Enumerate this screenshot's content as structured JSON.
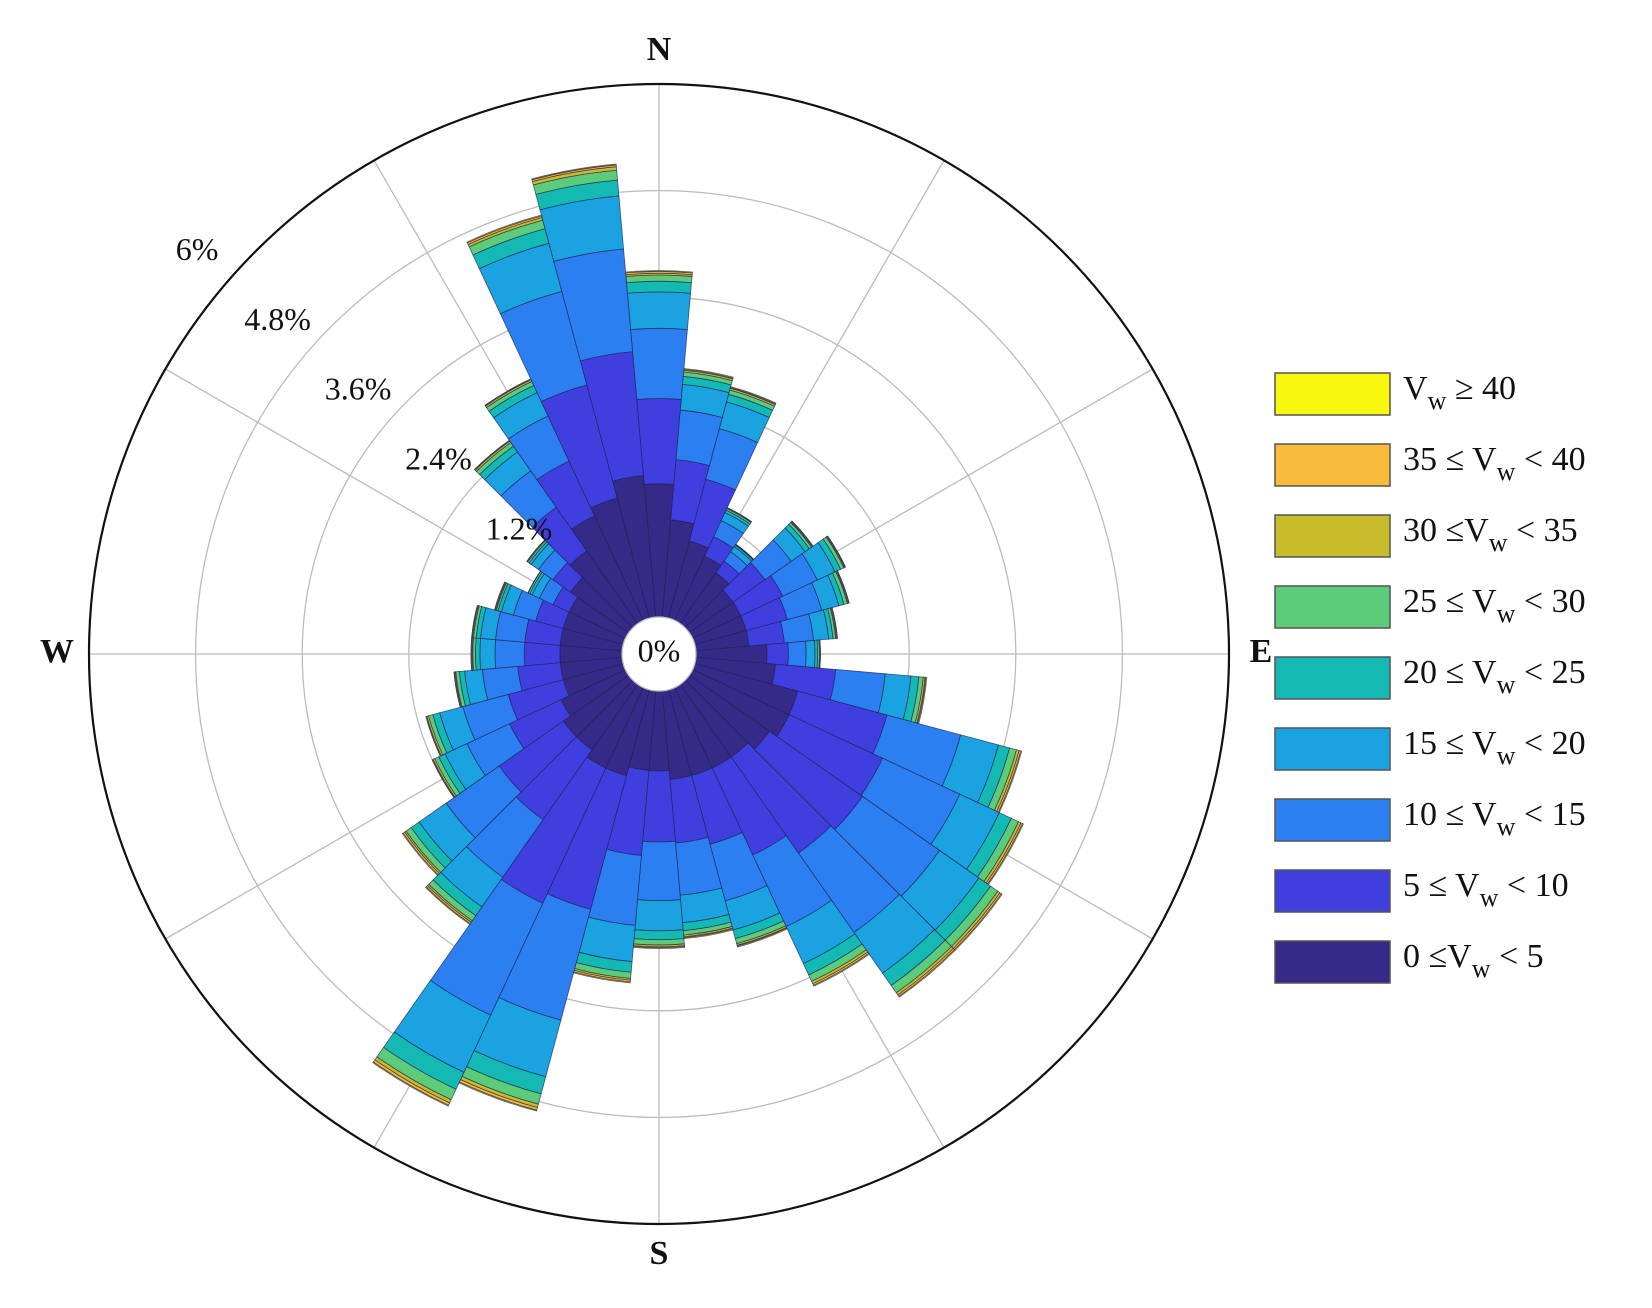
{
  "chart_data": {
    "type": "windrose",
    "categories": [
      null,
      null,
      null,
      null,
      null,
      null,
      null,
      null,
      null,
      null,
      null,
      null,
      null,
      null,
      null,
      null,
      null,
      null,
      null,
      null,
      null,
      null,
      null,
      null,
      null,
      null,
      null,
      null,
      null,
      null,
      null,
      null,
      null,
      null,
      null,
      null
    ],
    "direction_labels": [
      "N",
      "E",
      "S",
      "W"
    ],
    "ylim": [
      0,
      6
    ],
    "yticks": [
      {
        "value": 0,
        "label": "0%"
      },
      {
        "value": 1.2,
        "label": "1.2%"
      },
      {
        "value": 2.4,
        "label": "2.4%"
      },
      {
        "value": 3.6,
        "label": "3.6%"
      },
      {
        "value": 4.8,
        "label": "4.8%"
      },
      {
        "value": 6,
        "label": "6%"
      }
    ],
    "grid": true,
    "legend": "right",
    "series": [
      {
        "name": "0 ≤Vw < 5",
        "color": "#352a87",
        "values": [
          1.5,
          1.1,
          0.9,
          0.8,
          0.7,
          0.6,
          0.6,
          0.6,
          0.6,
          0.8,
          0.9,
          1.2,
          1.2,
          1.1,
          1.0,
          1.0,
          1.0,
          1.0,
          0.9,
          0.9,
          1.0,
          1.0,
          0.9,
          0.9,
          0.8,
          0.7,
          0.7,
          0.7,
          0.7,
          0.7,
          0.7,
          0.8,
          1.0,
          1.3,
          1.4,
          1.6
        ]
      },
      {
        "name": "5 ≤ Vw < 10",
        "color": "#3f3fe0",
        "values": [
          0.96,
          0.68,
          0.72,
          0.24,
          0.16,
          0.44,
          0.52,
          0.48,
          0.4,
          0.24,
          0.68,
          1.04,
          1.16,
          1.28,
          1.32,
          1.08,
          0.8,
          0.72,
          0.8,
          0.96,
          1.56,
          1.68,
          0.96,
          0.88,
          0.64,
          0.64,
          0.48,
          0.4,
          0.4,
          0.32,
          0.2,
          0.24,
          0.6,
          0.68,
          1.32,
          1.4
        ]
      },
      {
        "name": "10 ≤ Vw < 15",
        "color": "#2b7ff0",
        "values": [
          0.79,
          0.56,
          0.59,
          0.2,
          0.13,
          0.36,
          0.43,
          0.4,
          0.33,
          0.2,
          0.56,
          0.86,
          0.96,
          1.06,
          1.09,
          0.89,
          0.66,
          0.59,
          0.66,
          0.79,
          1.29,
          1.39,
          0.79,
          0.73,
          0.53,
          0.53,
          0.4,
          0.33,
          0.33,
          0.26,
          0.17,
          0.2,
          0.5,
          0.56,
          1.09,
          1.16
        ]
      },
      {
        "name": "15 ≤ Vw < 20",
        "color": "#1ba2e0",
        "values": [
          0.41,
          0.29,
          0.31,
          0.1,
          0.07,
          0.19,
          0.22,
          0.2,
          0.17,
          0.1,
          0.29,
          0.44,
          0.49,
          0.54,
          0.56,
          0.46,
          0.34,
          0.31,
          0.34,
          0.41,
          0.66,
          0.71,
          0.41,
          0.37,
          0.27,
          0.27,
          0.2,
          0.17,
          0.17,
          0.14,
          0.09,
          0.1,
          0.26,
          0.29,
          0.56,
          0.6
        ]
      },
      {
        "name": "20 ≤ Vw < 25",
        "color": "#14b9b4",
        "values": [
          0.12,
          0.09,
          0.09,
          0.03,
          0.02,
          0.06,
          0.07,
          0.06,
          0.05,
          0.03,
          0.09,
          0.13,
          0.15,
          0.16,
          0.17,
          0.14,
          0.1,
          0.09,
          0.1,
          0.12,
          0.2,
          0.21,
          0.12,
          0.11,
          0.08,
          0.08,
          0.06,
          0.05,
          0.05,
          0.04,
          0.03,
          0.03,
          0.08,
          0.09,
          0.17,
          0.18
        ]
      },
      {
        "name": "25 ≤ Vw < 30",
        "color": "#5ccb7a",
        "values": [
          0.07,
          0.05,
          0.05,
          0.02,
          0.01,
          0.03,
          0.04,
          0.04,
          0.03,
          0.02,
          0.05,
          0.08,
          0.09,
          0.1,
          0.1,
          0.08,
          0.06,
          0.05,
          0.06,
          0.07,
          0.12,
          0.13,
          0.07,
          0.07,
          0.05,
          0.05,
          0.04,
          0.03,
          0.03,
          0.02,
          0.02,
          0.02,
          0.05,
          0.05,
          0.1,
          0.11
        ]
      },
      {
        "name": "30 ≤Vw < 35",
        "color": "#c9bc2c",
        "values": [
          0.02,
          0.02,
          0.02,
          0.01,
          0,
          0.01,
          0.01,
          0.01,
          0.01,
          0.01,
          0.02,
          0.03,
          0.03,
          0.03,
          0.03,
          0.03,
          0.02,
          0.02,
          0.02,
          0.02,
          0.04,
          0.04,
          0.02,
          0.02,
          0.02,
          0.02,
          0.01,
          0.01,
          0.01,
          0.01,
          0,
          0.01,
          0.02,
          0.02,
          0.03,
          0.04
        ]
      },
      {
        "name": "35 ≤ Vw < 40",
        "color": "#f9bb3b",
        "values": [
          0.02,
          0.01,
          0.01,
          0,
          0,
          0.01,
          0.01,
          0.01,
          0.01,
          0,
          0.01,
          0.02,
          0.02,
          0.02,
          0.02,
          0.02,
          0.01,
          0.01,
          0.01,
          0.02,
          0.03,
          0.03,
          0.02,
          0.02,
          0.01,
          0.01,
          0.01,
          0.01,
          0.01,
          0.01,
          0,
          0,
          0.01,
          0.01,
          0.02,
          0.02
        ]
      },
      {
        "name": "Vw ≥ 40",
        "color": "#f8f80f",
        "values": [
          0.01,
          0.01,
          0.01,
          0,
          0,
          0,
          0,
          0,
          0,
          0,
          0.01,
          0.01,
          0.01,
          0.01,
          0.01,
          0.01,
          0.01,
          0.01,
          0.01,
          0.01,
          0.01,
          0.01,
          0.01,
          0.01,
          0,
          0,
          0,
          0,
          0,
          0,
          0,
          0,
          0,
          0,
          0.01,
          0.01
        ]
      }
    ]
  }
}
